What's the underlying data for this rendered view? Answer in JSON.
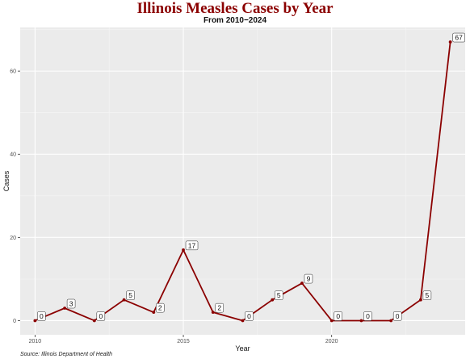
{
  "chart_data": {
    "type": "line",
    "title": "Illinois Measles Cases by Year",
    "subtitle": "From 2010−2024",
    "xlabel": "Year",
    "ylabel": "Cases",
    "caption": "Source: Illinois Department of Health",
    "x": [
      2010,
      2011,
      2012,
      2013,
      2014,
      2015,
      2016,
      2017,
      2018,
      2019,
      2020,
      2021,
      2022,
      2023,
      2024
    ],
    "series": [
      {
        "values": [
          0,
          3,
          0,
          5,
          2,
          17,
          2,
          0,
          5,
          9,
          0,
          0,
          0,
          5,
          67
        ],
        "color": "#8b0000"
      }
    ],
    "xticks": [
      2010,
      2015,
      2020
    ],
    "yticks": [
      0,
      20,
      40,
      60
    ],
    "xlim": [
      2009.5,
      2024.5
    ],
    "ylim": [
      -3.4,
      70.5
    ],
    "grid": true,
    "panel_background": "#ebebeb",
    "label_every_other_point": true
  }
}
